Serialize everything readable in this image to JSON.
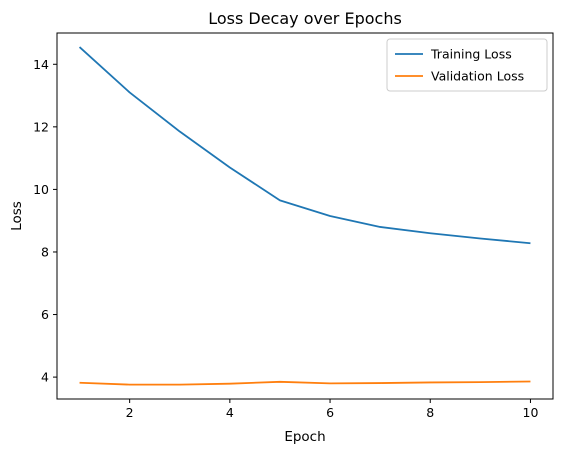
{
  "chart_data": {
    "type": "line",
    "title": "Loss Decay over Epochs",
    "xlabel": "Epoch",
    "ylabel": "Loss",
    "x": [
      1,
      2,
      3,
      4,
      5,
      6,
      7,
      8,
      9,
      10
    ],
    "xlim": [
      0.55,
      10.45
    ],
    "ylim": [
      3.3,
      15.0
    ],
    "xticks": [
      2,
      4,
      6,
      8,
      10
    ],
    "yticks": [
      4,
      6,
      8,
      10,
      12,
      14
    ],
    "grid": false,
    "legend_position": "top-right",
    "series": [
      {
        "name": "Training Loss",
        "color": "#1f77b4",
        "values": [
          14.55,
          13.1,
          11.85,
          10.7,
          9.65,
          9.15,
          8.8,
          8.6,
          8.43,
          8.28
        ]
      },
      {
        "name": "Validation Loss",
        "color": "#ff7f0e",
        "values": [
          3.82,
          3.76,
          3.76,
          3.79,
          3.85,
          3.8,
          3.81,
          3.83,
          3.84,
          3.86
        ]
      }
    ]
  }
}
